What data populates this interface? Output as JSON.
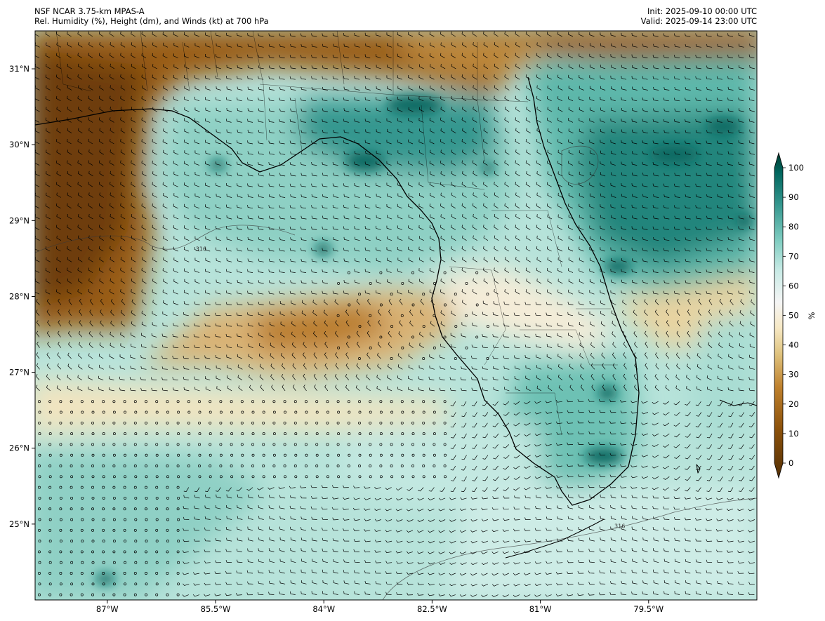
{
  "header": {
    "left_line1": "NSF NCAR 3.75-km MPAS-A",
    "left_line2": "Rel. Humidity (%), Height (dm), and Winds (kt) at 700 hPa",
    "right_line1": "Init: 2025-09-10 00:00 UTC",
    "right_line2": "Valid: 2025-09-14 23:00 UTC"
  },
  "map": {
    "lon_range": [
      -88.0,
      -78.0
    ],
    "lat_range": [
      24.0,
      31.5
    ],
    "lon_ticks": [
      {
        "value": -87.0,
        "label": "87°W"
      },
      {
        "value": -85.5,
        "label": "85.5°W"
      },
      {
        "value": -84.0,
        "label": "84°W"
      },
      {
        "value": -82.5,
        "label": "82.5°W"
      },
      {
        "value": -81.0,
        "label": "81°W"
      },
      {
        "value": -79.5,
        "label": "79.5°W"
      }
    ],
    "lat_ticks": [
      {
        "value": 31,
        "label": "31°N"
      },
      {
        "value": 30,
        "label": "30°N"
      },
      {
        "value": 29,
        "label": "29°N"
      },
      {
        "value": 28,
        "label": "28°N"
      },
      {
        "value": 27,
        "label": "27°N"
      },
      {
        "value": 26,
        "label": "26°N"
      },
      {
        "value": 25,
        "label": "25°N"
      }
    ],
    "contour_labels": [
      {
        "text": "316",
        "lon": -85.7,
        "lat": 28.6
      },
      {
        "text": "316",
        "lon": -79.9,
        "lat": 24.95
      }
    ]
  },
  "colorbar": {
    "unit_label": "%",
    "ticks": [
      0,
      10,
      20,
      30,
      40,
      50,
      60,
      70,
      80,
      90,
      100
    ],
    "colors": [
      "#543005",
      "#8c510a",
      "#bf812d",
      "#dfc27d",
      "#f6e8c3",
      "#f5f5f5",
      "#c7eae5",
      "#80cdc1",
      "#35978f",
      "#01665e",
      "#003c30"
    ]
  }
}
